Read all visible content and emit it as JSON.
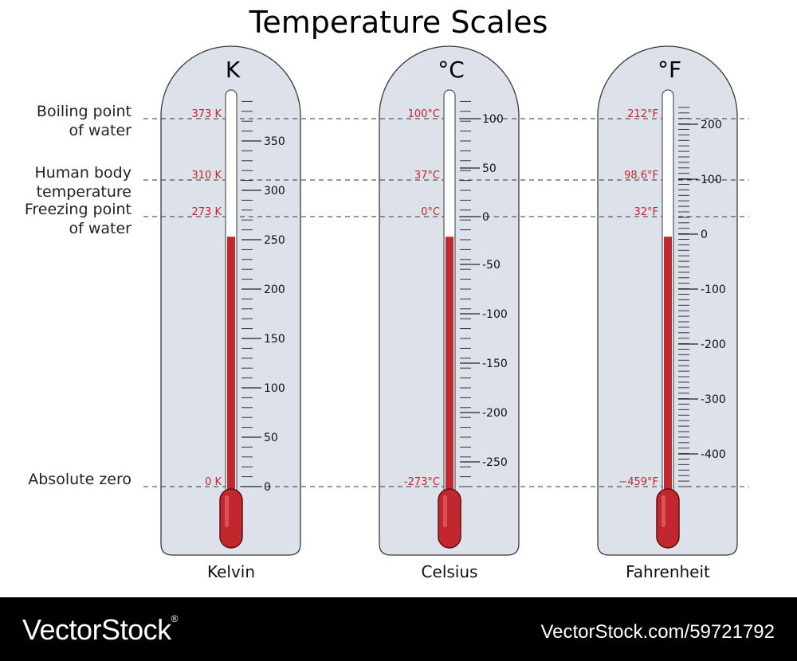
{
  "title": "Temperature Scales",
  "reference_labels": [
    {
      "lines": [
        "Boiling point",
        "of water"
      ]
    },
    {
      "lines": [
        "Human body",
        "temperature"
      ]
    },
    {
      "lines": [
        "Freezing point",
        "of water"
      ]
    },
    {
      "lines": [
        "Absolute zero"
      ]
    }
  ],
  "thermometers": [
    {
      "symbol": "K",
      "name": "Kelvin",
      "ticks": [
        "0",
        "50",
        "100",
        "150",
        "200",
        "250",
        "300",
        "350"
      ],
      "marks": [
        "373 K",
        "310 K",
        "273 K",
        "0 K"
      ]
    },
    {
      "symbol": "°C",
      "name": "Celsius",
      "ticks": [
        "-250",
        "-200",
        "-150",
        "-100",
        "-50",
        "0",
        "50",
        "100"
      ],
      "marks": [
        "100°C",
        "37°C",
        "0°C",
        "-273°C"
      ]
    },
    {
      "symbol": "°F",
      "name": "Fahrenheit",
      "ticks": [
        "-400",
        "-300",
        "-200",
        "-100",
        "0",
        "100",
        "200"
      ],
      "marks": [
        "212°F",
        "98.6°F",
        "32°F",
        "−459°F"
      ]
    }
  ],
  "mercury_level": 0.63,
  "colors": {
    "mercury": "#c1272d",
    "mark_text": "#c1272d",
    "body_fill": "#dde2ea",
    "body_stroke": "#3a3a3a"
  },
  "footer": {
    "brand": "VectorStock",
    "brand_mark": "®",
    "reference": "VectorStock.com/59721792"
  }
}
